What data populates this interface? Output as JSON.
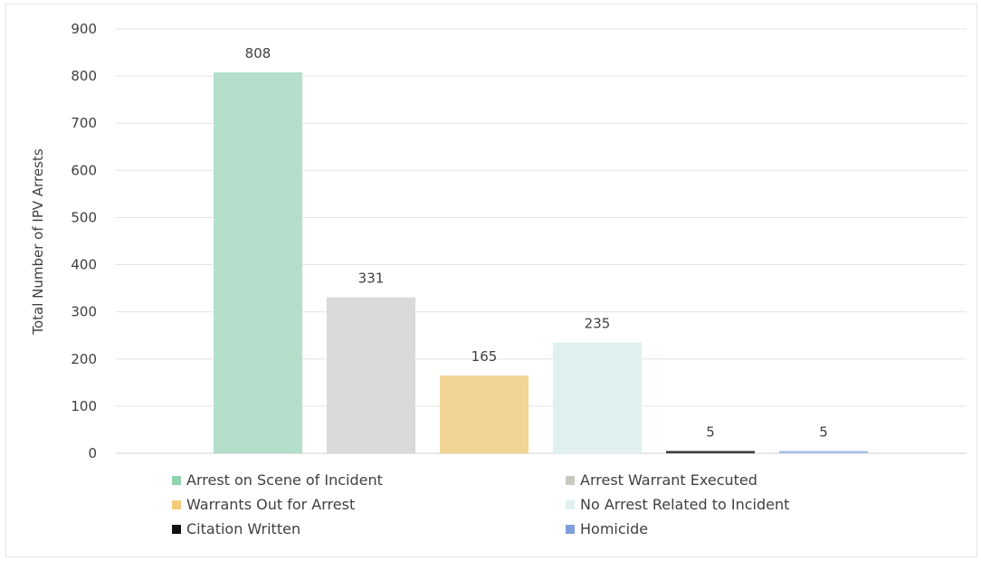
{
  "chart_data": {
    "type": "bar",
    "title": "",
    "xlabel": "",
    "ylabel": "Total Number of IPV Arrests",
    "ylim": [
      0,
      900
    ],
    "yticks": [
      0,
      100,
      200,
      300,
      400,
      500,
      600,
      700,
      800,
      900
    ],
    "grid": true,
    "legend_position": "bottom",
    "categories": [
      "Arrest on Scene of Incident",
      "Arrest Warrant Executed",
      "Warrants Out for Arrest",
      "No Arrest Related to Incident",
      "Citation Written",
      "Homicide"
    ],
    "values": [
      808,
      331,
      165,
      235,
      5,
      5
    ],
    "colors": [
      "#b3dfcb",
      "#d9d9d9",
      "#f0d594",
      "#dff0ef",
      "#404040",
      "#a9c2ea"
    ],
    "legend_colors": [
      "#8fd3b0",
      "#c9c9c0",
      "#f3cc7a",
      "#dff0ef",
      "#111111",
      "#7f9fdc"
    ]
  }
}
